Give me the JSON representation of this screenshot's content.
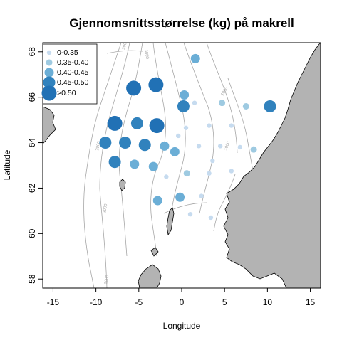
{
  "chart_data": {
    "type": "scatter",
    "title": "Gjennomsnittsstørrelse (kg) på makrell",
    "xlabel": "Longitude",
    "ylabel": "Latitude",
    "xlim": [
      -16.2,
      16.2
    ],
    "ylim": [
      57.6,
      68.4
    ],
    "xticks": [
      -15,
      -10,
      -5,
      0,
      5,
      10,
      15
    ],
    "yticks": [
      58,
      60,
      62,
      64,
      66,
      68
    ],
    "grid": false,
    "legend": {
      "placement": "top-left",
      "entries": [
        {
          "label": "0-0.35",
          "class": 1
        },
        {
          "label": "0.35-0.40",
          "class": 2
        },
        {
          "label": "0.40-0.45",
          "class": 3
        },
        {
          "label": "0.45-0.50",
          "class": 4
        },
        {
          "label": ">0.50",
          "class": 5
        }
      ]
    },
    "class_colors": [
      "#c6dbef",
      "#9ecae1",
      "#6baed6",
      "#3182bd",
      "#2171b5"
    ],
    "land_color": "#b3b3b3",
    "contour_color": "#a6a6a6",
    "contour_labels": [
      "2000",
      "3000",
      "1000",
      "1000",
      "2000",
      "3000",
      "1000"
    ],
    "points": [
      {
        "lon": -5.6,
        "lat": 66.4,
        "class": 5
      },
      {
        "lon": -3.0,
        "lat": 66.55,
        "class": 5
      },
      {
        "lon": -7.8,
        "lat": 64.85,
        "class": 5
      },
      {
        "lon": -2.9,
        "lat": 64.75,
        "class": 5
      },
      {
        "lon": 0.2,
        "lat": 65.6,
        "class": 4
      },
      {
        "lon": 10.3,
        "lat": 65.6,
        "class": 4
      },
      {
        "lon": -5.2,
        "lat": 64.85,
        "class": 4
      },
      {
        "lon": -8.9,
        "lat": 64.0,
        "class": 4
      },
      {
        "lon": -6.6,
        "lat": 64.0,
        "class": 4
      },
      {
        "lon": -4.3,
        "lat": 63.9,
        "class": 4
      },
      {
        "lon": -7.8,
        "lat": 63.15,
        "class": 4
      },
      {
        "lon": 1.6,
        "lat": 67.7,
        "class": 3
      },
      {
        "lon": 0.3,
        "lat": 66.1,
        "class": 3
      },
      {
        "lon": -2.0,
        "lat": 63.85,
        "class": 3
      },
      {
        "lon": -0.8,
        "lat": 63.6,
        "class": 3
      },
      {
        "lon": -5.5,
        "lat": 63.05,
        "class": 3
      },
      {
        "lon": -3.3,
        "lat": 62.95,
        "class": 3
      },
      {
        "lon": -2.8,
        "lat": 61.45,
        "class": 3
      },
      {
        "lon": -0.2,
        "lat": 61.6,
        "class": 3
      },
      {
        "lon": 4.7,
        "lat": 65.75,
        "class": 2
      },
      {
        "lon": 7.5,
        "lat": 65.6,
        "class": 2
      },
      {
        "lon": 8.4,
        "lat": 63.7,
        "class": 2
      },
      {
        "lon": 0.6,
        "lat": 62.65,
        "class": 2
      },
      {
        "lon": -0.4,
        "lat": 64.3,
        "class": 1
      },
      {
        "lon": 1.5,
        "lat": 65.75,
        "class": 1
      },
      {
        "lon": 0.5,
        "lat": 64.65,
        "class": 1
      },
      {
        "lon": 3.2,
        "lat": 64.75,
        "class": 1
      },
      {
        "lon": 5.8,
        "lat": 64.75,
        "class": 1
      },
      {
        "lon": 2.0,
        "lat": 63.85,
        "class": 1
      },
      {
        "lon": 4.5,
        "lat": 63.85,
        "class": 1
      },
      {
        "lon": 6.8,
        "lat": 63.8,
        "class": 1
      },
      {
        "lon": 3.6,
        "lat": 63.2,
        "class": 1
      },
      {
        "lon": -1.8,
        "lat": 62.5,
        "class": 1
      },
      {
        "lon": 3.2,
        "lat": 62.65,
        "class": 1
      },
      {
        "lon": 5.8,
        "lat": 62.75,
        "class": 1
      },
      {
        "lon": 2.3,
        "lat": 61.65,
        "class": 1
      },
      {
        "lon": 1.0,
        "lat": 60.85,
        "class": 1
      },
      {
        "lon": 3.4,
        "lat": 60.7,
        "class": 1
      }
    ]
  }
}
